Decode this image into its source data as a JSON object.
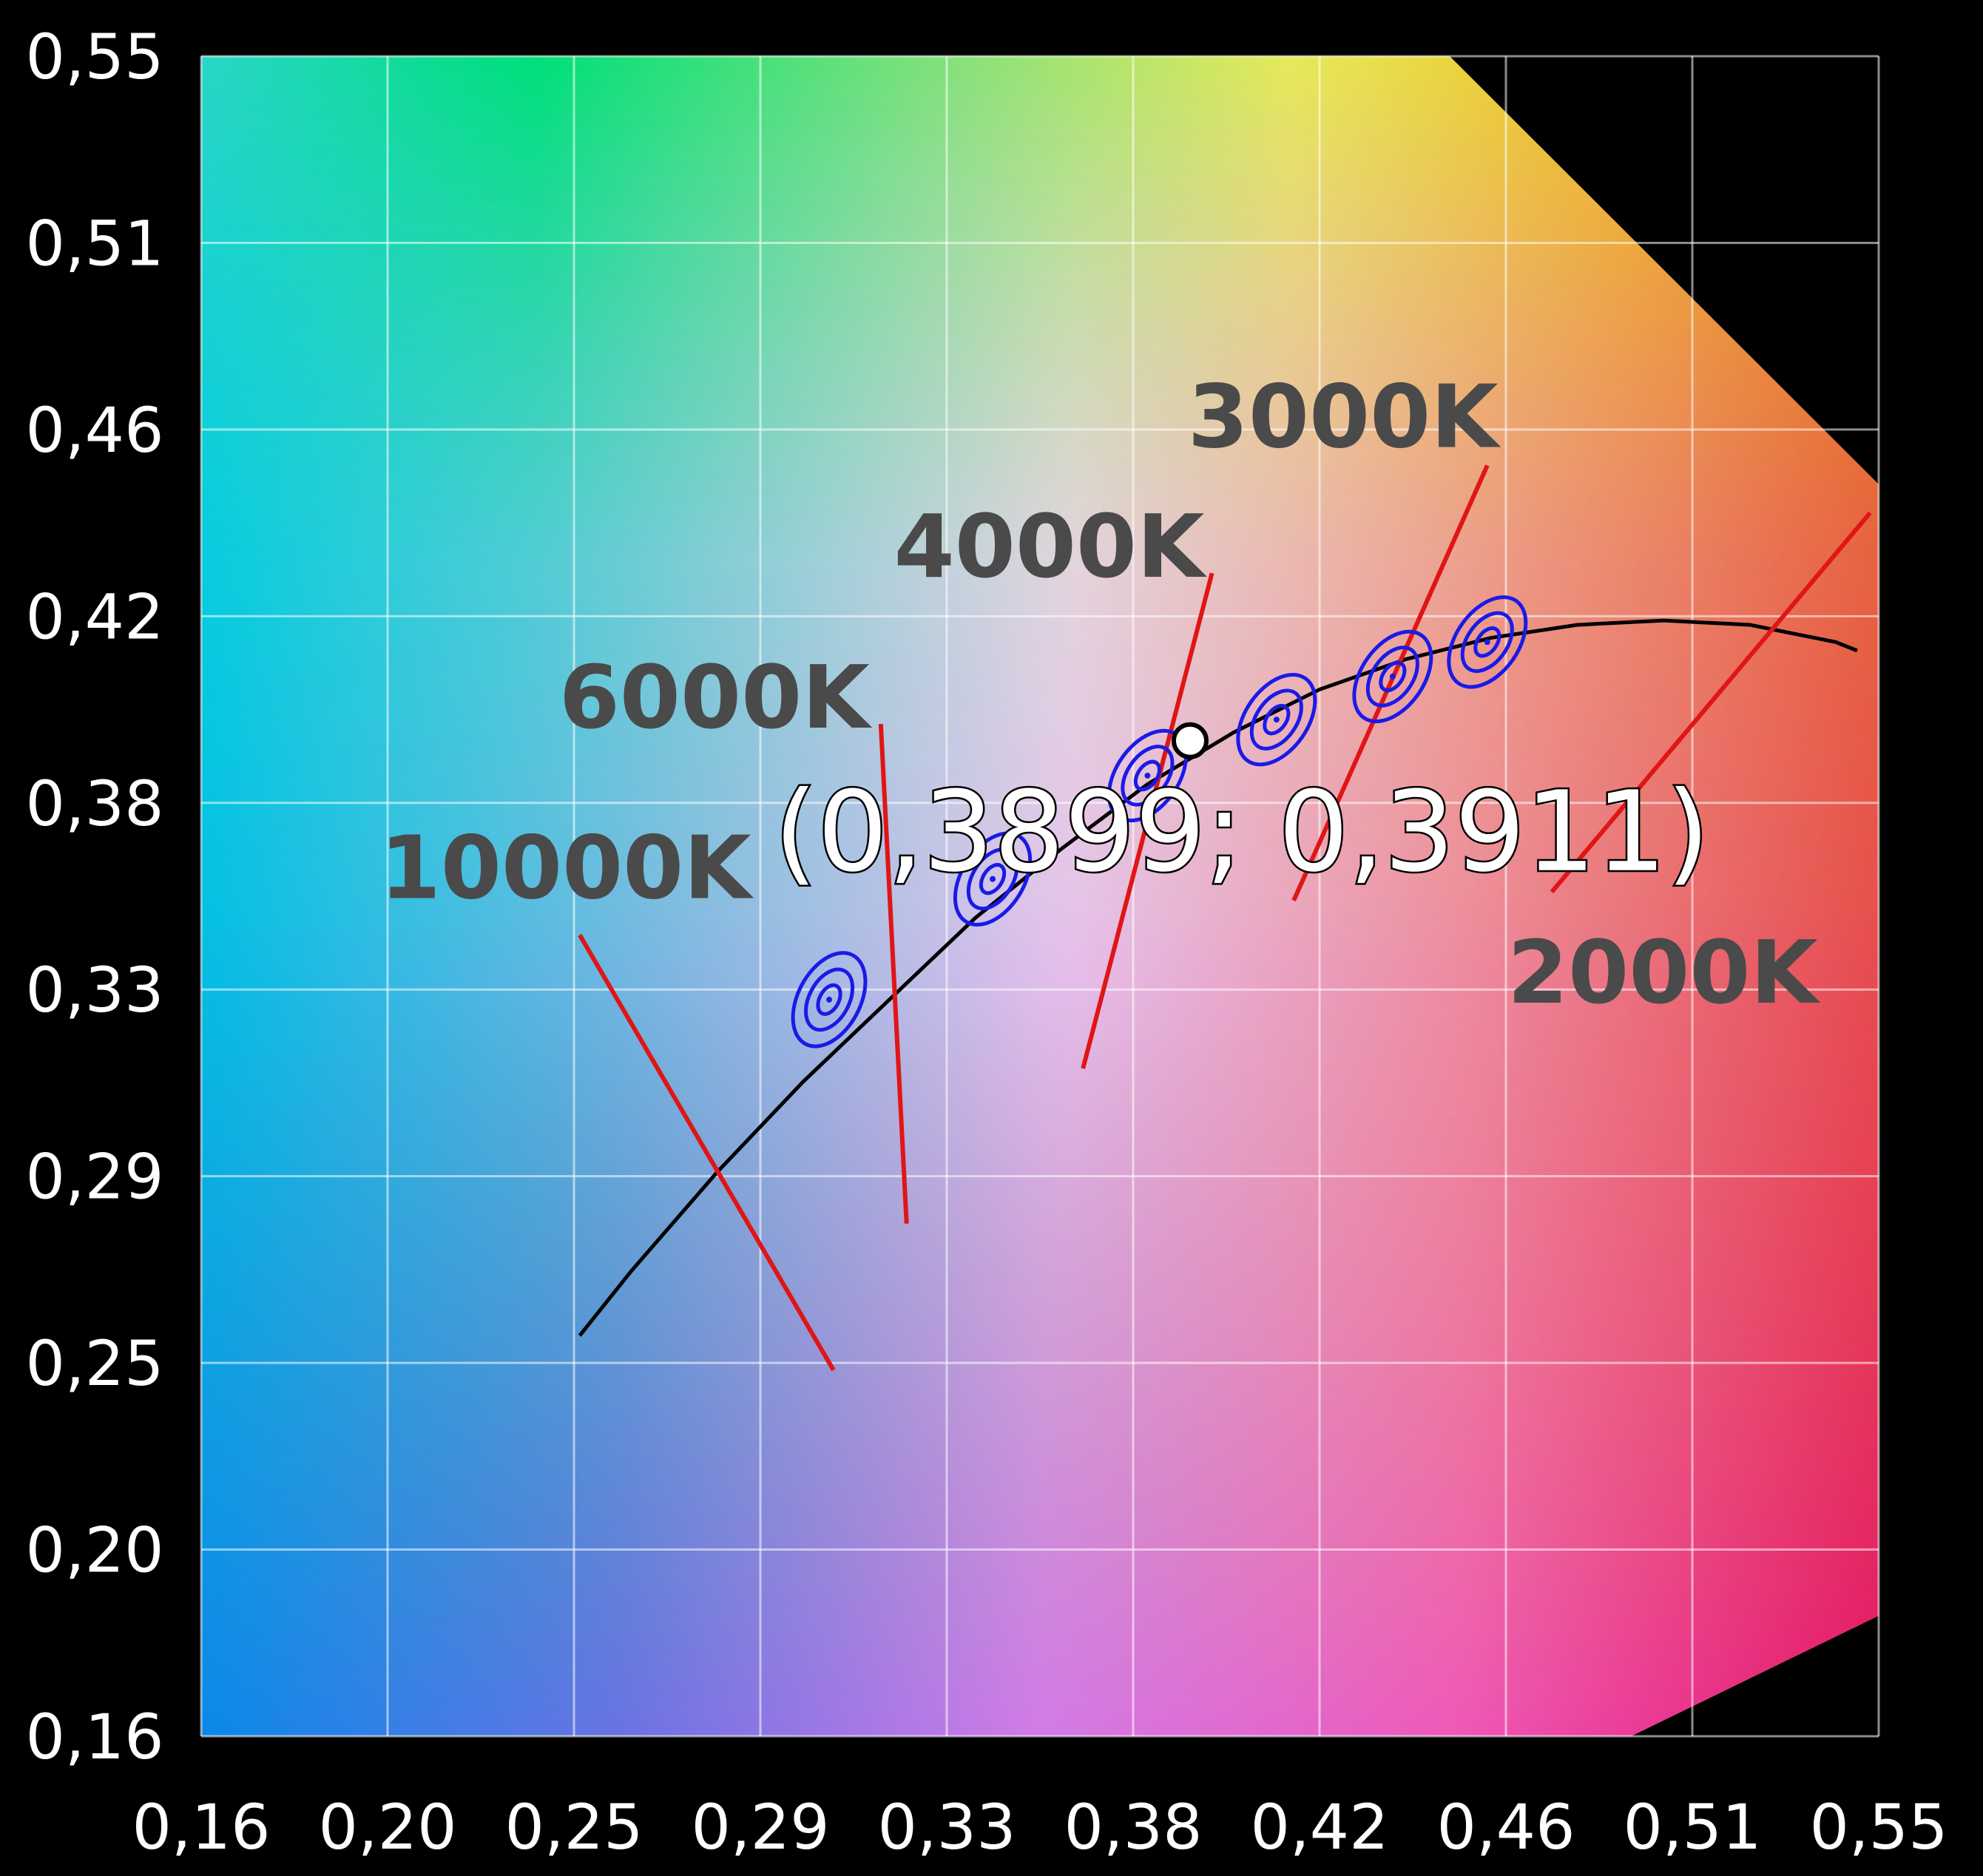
{
  "chart_data": {
    "type": "scatter",
    "title": "",
    "xlabel": "",
    "ylabel": "",
    "x_ticks": [
      "0,16",
      "0,20",
      "0,25",
      "0,29",
      "0,33",
      "0,38",
      "0,42",
      "0,46",
      "0,51",
      "0,55"
    ],
    "y_ticks": [
      "0,55",
      "0,51",
      "0,46",
      "0,42",
      "0,38",
      "0,33",
      "0,29",
      "0,25",
      "0,20",
      "0,16"
    ],
    "xlim": [
      0.16,
      0.55
    ],
    "ylim": [
      0.16,
      0.55
    ],
    "grid": true,
    "background": "CIE 1931 chromaticity colour field",
    "planckian_locus": [
      [
        0.248,
        0.253
      ],
      [
        0.26,
        0.268
      ],
      [
        0.28,
        0.291
      ],
      [
        0.3,
        0.312
      ],
      [
        0.32,
        0.331
      ],
      [
        0.34,
        0.35
      ],
      [
        0.36,
        0.366
      ],
      [
        0.38,
        0.381
      ],
      [
        0.4,
        0.393
      ],
      [
        0.42,
        0.403
      ],
      [
        0.44,
        0.41
      ],
      [
        0.46,
        0.415
      ],
      [
        0.48,
        0.418
      ],
      [
        0.5,
        0.419
      ],
      [
        0.52,
        0.418
      ],
      [
        0.54,
        0.414
      ],
      [
        0.545,
        0.412
      ]
    ],
    "isotherms": [
      {
        "label": "10000K",
        "x1": 0.248,
        "y1": 0.346,
        "x2": 0.307,
        "y2": 0.245
      },
      {
        "label": "6000K",
        "x1": 0.318,
        "y1": 0.395,
        "x2": 0.324,
        "y2": 0.279
      },
      {
        "label": "4000K",
        "x1": 0.395,
        "y1": 0.43,
        "x2": 0.365,
        "y2": 0.315
      },
      {
        "label": "3000K",
        "x1": 0.459,
        "y1": 0.455,
        "x2": 0.414,
        "y2": 0.354
      },
      {
        "label": "2000K",
        "x1": 0.548,
        "y1": 0.444,
        "x2": 0.474,
        "y2": 0.356
      }
    ],
    "macadam_ellipses": [
      {
        "cx": 0.306,
        "cy": 0.331,
        "angle": -62
      },
      {
        "cx": 0.344,
        "cy": 0.359,
        "angle": -58
      },
      {
        "cx": 0.38,
        "cy": 0.383,
        "angle": -55
      },
      {
        "cx": 0.41,
        "cy": 0.396,
        "angle": -55
      },
      {
        "cx": 0.437,
        "cy": 0.406,
        "angle": -55
      },
      {
        "cx": 0.459,
        "cy": 0.414,
        "angle": -55
      }
    ],
    "measured_point": {
      "x": 0.3899,
      "y": 0.3911,
      "label": "(0,3899; 0,3911)"
    },
    "colors": {
      "locus": "#000000",
      "isotherm": "#e01515",
      "ellipse": "#1a1ae8",
      "grid": "#ffffff",
      "cct_label": "#4a4a4a",
      "point": "#ffffff"
    }
  }
}
